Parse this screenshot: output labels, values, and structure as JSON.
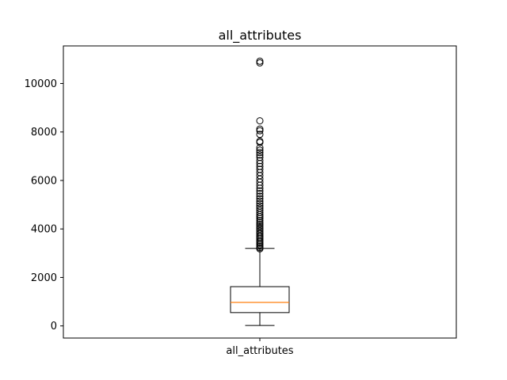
{
  "chart_data": {
    "type": "boxplot",
    "title": "all_attributes",
    "xlabel": "",
    "ylabel": "",
    "categories": [
      "all_attributes"
    ],
    "ylim": [
      -500,
      11550
    ],
    "yticks": [
      0,
      2000,
      4000,
      6000,
      8000,
      10000
    ],
    "grid": false,
    "legend": "none",
    "boxes": [
      {
        "category": "all_attributes",
        "whisker_low": 20,
        "q1": 550,
        "median": 970,
        "q3": 1620,
        "whisker_high": 3200,
        "outliers": [
          3180,
          3230,
          3290,
          3350,
          3410,
          3470,
          3530,
          3600,
          3660,
          3720,
          3790,
          3850,
          3920,
          3990,
          4060,
          4130,
          4200,
          4270,
          4350,
          4430,
          4510,
          4590,
          4680,
          4770,
          4860,
          4950,
          5050,
          5150,
          5250,
          5350,
          5460,
          5570,
          5680,
          5800,
          5930,
          6060,
          6200,
          6330,
          6460,
          6580,
          6700,
          6820,
          6950,
          7050,
          7150,
          7250,
          7350,
          7570,
          7620,
          7900,
          8050,
          8120,
          8460,
          10850,
          10920
        ]
      }
    ],
    "colors": {
      "box": "#000000",
      "median": "#ff7f0e",
      "outlier": "#000000"
    }
  }
}
